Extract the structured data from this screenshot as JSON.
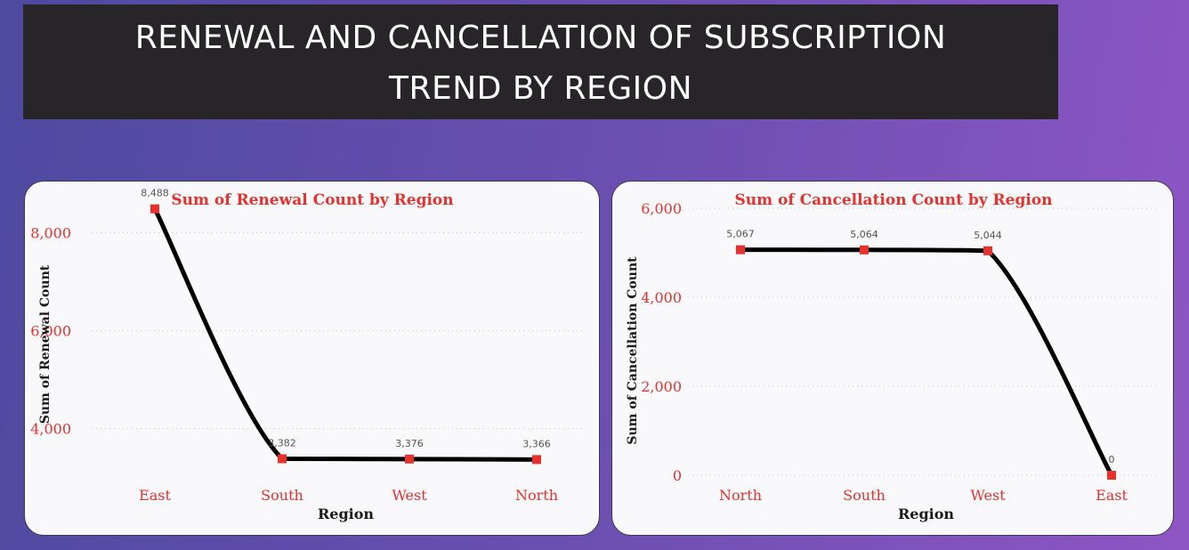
{
  "header": {
    "title_line1": "RENEWAL AND CANCELLATION OF SUBSCRIPTION",
    "title_line2": "TREND BY REGION"
  },
  "chart_data": [
    {
      "type": "line",
      "title": "Sum of Renewal Count by Region",
      "xlabel": "Region",
      "ylabel": "Sum of Renewal Count",
      "categories": [
        "East",
        "South",
        "West",
        "North"
      ],
      "values": [
        8488,
        3382,
        3376,
        3366
      ],
      "value_labels": [
        "8,488",
        "3,382",
        "3,376",
        "3,366"
      ],
      "yticks": [
        4000,
        6000,
        8000
      ],
      "ytick_labels": [
        "4,000",
        "6,000",
        "8,000"
      ],
      "ylim": [
        3300,
        8500
      ],
      "grid": true,
      "line_color": "#000000",
      "marker_color": "#e8312c"
    },
    {
      "type": "line",
      "title": "Sum of Cancellation Count by Region",
      "xlabel": "Region",
      "ylabel": "Sum of Cancellation Count",
      "categories": [
        "North",
        "South",
        "West",
        "East"
      ],
      "values": [
        5067,
        5064,
        5044,
        0
      ],
      "value_labels": [
        "5,067",
        "5,064",
        "5,044",
        "0"
      ],
      "yticks": [
        0,
        2000,
        4000,
        6000
      ],
      "ytick_labels": [
        "0",
        "2,000",
        "4,000",
        "6,000"
      ],
      "ylim": [
        0,
        6000
      ],
      "grid": true,
      "line_color": "#000000",
      "marker_color": "#e8312c"
    }
  ]
}
